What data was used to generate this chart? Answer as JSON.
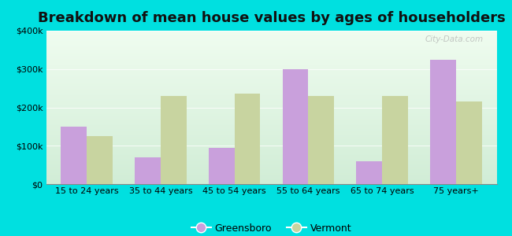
{
  "categories": [
    "15 to 24 years",
    "35 to 44 years",
    "45 to 54 years",
    "55 to 64 years",
    "65 to 74 years",
    "75 years+"
  ],
  "greensboro": [
    150000,
    70000,
    95000,
    300000,
    60000,
    325000
  ],
  "vermont": [
    125000,
    230000,
    235000,
    230000,
    230000,
    215000
  ],
  "greensboro_color": "#c9a0dc",
  "vermont_color": "#c8d4a0",
  "title": "Breakdown of mean house values by ages of householders",
  "title_fontsize": 13,
  "background_outer": "#00e0e0",
  "ylim": [
    0,
    400000
  ],
  "yticks": [
    0,
    100000,
    200000,
    300000,
    400000
  ],
  "ytick_labels": [
    "$0",
    "$100k",
    "$200k",
    "$300k",
    "$400k"
  ],
  "legend_labels": [
    "Greensboro",
    "Vermont"
  ],
  "bar_width": 0.35,
  "watermark": "City-Data.com"
}
